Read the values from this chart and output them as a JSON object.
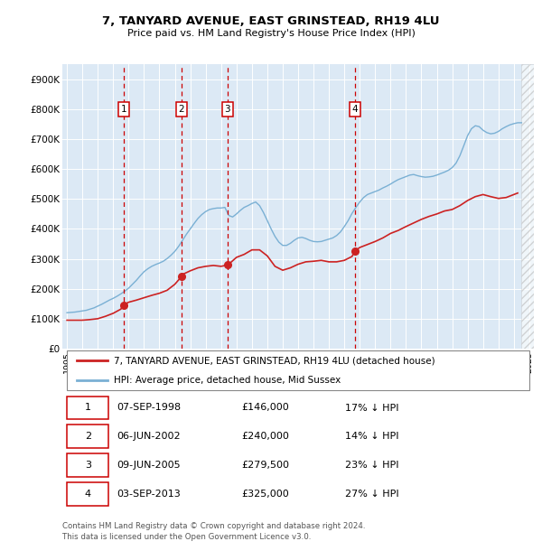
{
  "title": "7, TANYARD AVENUE, EAST GRINSTEAD, RH19 4LU",
  "subtitle": "Price paid vs. HM Land Registry's House Price Index (HPI)",
  "ylim": [
    0,
    950000
  ],
  "yticks": [
    0,
    100000,
    200000,
    300000,
    400000,
    500000,
    600000,
    700000,
    800000,
    900000
  ],
  "ytick_labels": [
    "£0",
    "£100K",
    "£200K",
    "£300K",
    "£400K",
    "£500K",
    "£600K",
    "£700K",
    "£800K",
    "£900K"
  ],
  "xlim": [
    1994.7,
    2025.3
  ],
  "plot_bg_color": "#dce9f5",
  "grid_color": "#ffffff",
  "hpi_color": "#7ab0d4",
  "price_color": "#cc2222",
  "hpi_line": {
    "years": [
      1995.0,
      1995.25,
      1995.5,
      1995.75,
      1996.0,
      1996.25,
      1996.5,
      1996.75,
      1997.0,
      1997.25,
      1997.5,
      1997.75,
      1998.0,
      1998.25,
      1998.5,
      1998.75,
      1999.0,
      1999.25,
      1999.5,
      1999.75,
      2000.0,
      2000.25,
      2000.5,
      2000.75,
      2001.0,
      2001.25,
      2001.5,
      2001.75,
      2002.0,
      2002.25,
      2002.5,
      2002.75,
      2003.0,
      2003.25,
      2003.5,
      2003.75,
      2004.0,
      2004.25,
      2004.5,
      2004.75,
      2005.0,
      2005.25,
      2005.5,
      2005.75,
      2006.0,
      2006.25,
      2006.5,
      2006.75,
      2007.0,
      2007.25,
      2007.5,
      2007.75,
      2008.0,
      2008.25,
      2008.5,
      2008.75,
      2009.0,
      2009.25,
      2009.5,
      2009.75,
      2010.0,
      2010.25,
      2010.5,
      2010.75,
      2011.0,
      2011.25,
      2011.5,
      2011.75,
      2012.0,
      2012.25,
      2012.5,
      2012.75,
      2013.0,
      2013.25,
      2013.5,
      2013.75,
      2014.0,
      2014.25,
      2014.5,
      2014.75,
      2015.0,
      2015.25,
      2015.5,
      2015.75,
      2016.0,
      2016.25,
      2016.5,
      2016.75,
      2017.0,
      2017.25,
      2017.5,
      2017.75,
      2018.0,
      2018.25,
      2018.5,
      2018.75,
      2019.0,
      2019.25,
      2019.5,
      2019.75,
      2020.0,
      2020.25,
      2020.5,
      2020.75,
      2021.0,
      2021.25,
      2021.5,
      2021.75,
      2022.0,
      2022.25,
      2022.5,
      2022.75,
      2023.0,
      2023.25,
      2023.5,
      2023.75,
      2024.0,
      2024.25,
      2024.5
    ],
    "values": [
      120000,
      121000,
      122000,
      124000,
      126000,
      128000,
      132000,
      136000,
      142000,
      148000,
      155000,
      162000,
      168000,
      175000,
      183000,
      192000,
      202000,
      215000,
      228000,
      243000,
      257000,
      267000,
      275000,
      281000,
      286000,
      292000,
      301000,
      312000,
      325000,
      342000,
      362000,
      382000,
      400000,
      418000,
      435000,
      448000,
      458000,
      465000,
      468000,
      470000,
      470000,
      472000,
      445000,
      440000,
      450000,
      462000,
      472000,
      478000,
      485000,
      490000,
      478000,
      455000,
      428000,
      400000,
      375000,
      356000,
      345000,
      345000,
      352000,
      362000,
      370000,
      372000,
      368000,
      362000,
      358000,
      357000,
      358000,
      362000,
      366000,
      370000,
      378000,
      390000,
      408000,
      428000,
      452000,
      472000,
      490000,
      505000,
      515000,
      520000,
      525000,
      530000,
      537000,
      543000,
      550000,
      558000,
      565000,
      570000,
      575000,
      580000,
      582000,
      578000,
      575000,
      573000,
      574000,
      576000,
      580000,
      585000,
      590000,
      596000,
      605000,
      620000,
      645000,
      678000,
      712000,
      735000,
      745000,
      742000,
      730000,
      722000,
      718000,
      720000,
      726000,
      735000,
      742000,
      748000,
      752000,
      755000,
      755000
    ]
  },
  "price_line": {
    "years": [
      1995.0,
      1995.5,
      1996.0,
      1996.5,
      1997.0,
      1997.5,
      1998.0,
      1998.5,
      1998.67,
      1999.0,
      1999.5,
      2000.0,
      2000.5,
      2001.0,
      2001.5,
      2002.0,
      2002.42,
      2002.5,
      2003.0,
      2003.5,
      2004.0,
      2004.5,
      2005.0,
      2005.42,
      2005.5,
      2006.0,
      2006.5,
      2007.0,
      2007.5,
      2008.0,
      2008.5,
      2009.0,
      2009.5,
      2010.0,
      2010.5,
      2011.0,
      2011.5,
      2012.0,
      2012.5,
      2013.0,
      2013.5,
      2013.67,
      2014.0,
      2014.5,
      2015.0,
      2015.5,
      2016.0,
      2016.5,
      2017.0,
      2017.5,
      2018.0,
      2018.5,
      2019.0,
      2019.5,
      2020.0,
      2020.5,
      2021.0,
      2021.5,
      2022.0,
      2022.5,
      2023.0,
      2023.5,
      2024.0,
      2024.25
    ],
    "values": [
      95000,
      95000,
      95000,
      97000,
      100000,
      108000,
      118000,
      132000,
      146000,
      155000,
      162000,
      170000,
      178000,
      185000,
      195000,
      215000,
      240000,
      248000,
      260000,
      270000,
      275000,
      278000,
      275000,
      279500,
      282000,
      305000,
      315000,
      330000,
      330000,
      310000,
      275000,
      262000,
      270000,
      282000,
      290000,
      292000,
      295000,
      290000,
      290000,
      295000,
      308000,
      325000,
      338000,
      348000,
      358000,
      370000,
      385000,
      395000,
      408000,
      420000,
      432000,
      442000,
      450000,
      460000,
      465000,
      478000,
      495000,
      508000,
      515000,
      508000,
      502000,
      505000,
      515000,
      520000
    ]
  },
  "transactions": [
    {
      "num": 1,
      "year": 1998.67,
      "price": 146000
    },
    {
      "num": 2,
      "year": 2002.42,
      "price": 240000
    },
    {
      "num": 3,
      "year": 2005.42,
      "price": 279500
    },
    {
      "num": 4,
      "year": 2013.67,
      "price": 325000
    }
  ],
  "legend1": "7, TANYARD AVENUE, EAST GRINSTEAD, RH19 4LU (detached house)",
  "legend2": "HPI: Average price, detached house, Mid Sussex",
  "footnote": "Contains HM Land Registry data © Crown copyright and database right 2024.\nThis data is licensed under the Open Government Licence v3.0.",
  "table_rows": [
    [
      "1",
      "07-SEP-1998",
      "£146,000",
      "17% ↓ HPI"
    ],
    [
      "2",
      "06-JUN-2002",
      "£240,000",
      "14% ↓ HPI"
    ],
    [
      "3",
      "09-JUN-2005",
      "£279,500",
      "23% ↓ HPI"
    ],
    [
      "4",
      "03-SEP-2013",
      "£325,000",
      "27% ↓ HPI"
    ]
  ]
}
